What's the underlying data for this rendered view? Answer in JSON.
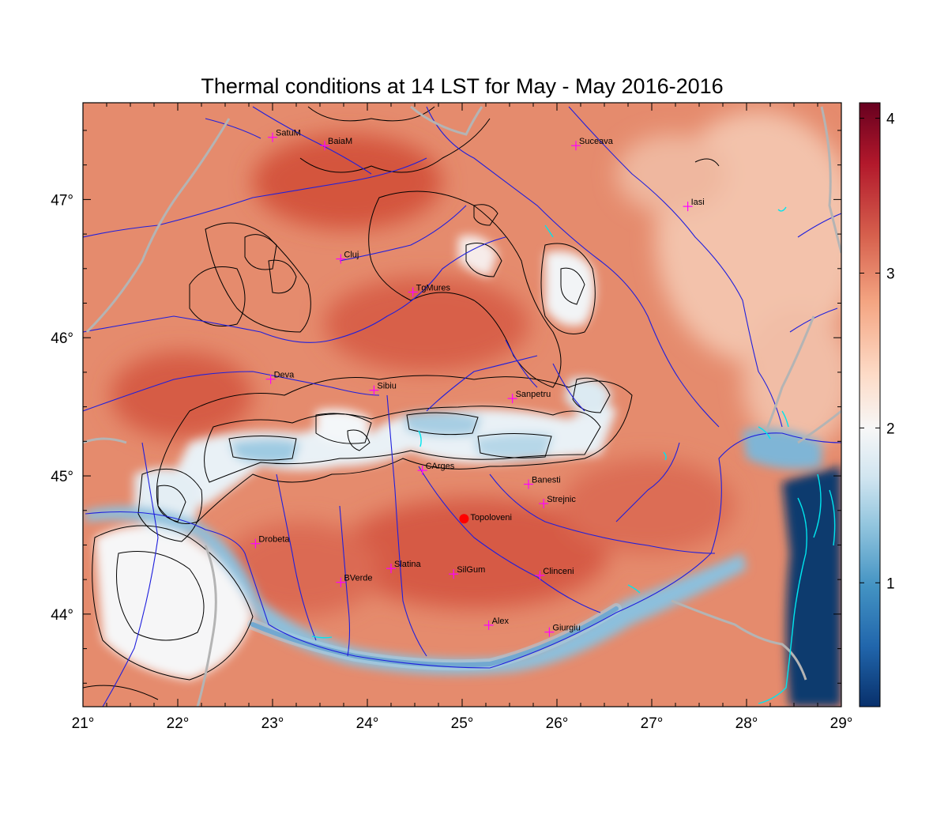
{
  "title": "Thermal conditions at 14 LST for May - May  2016-2016",
  "map": {
    "lon_range": [
      21,
      29
    ],
    "lat_range": [
      43.33,
      47.7
    ],
    "x_ticks": [
      {
        "value": 21,
        "label": "21°"
      },
      {
        "value": 22,
        "label": "22°"
      },
      {
        "value": 23,
        "label": "23°"
      },
      {
        "value": 24,
        "label": "24°"
      },
      {
        "value": 25,
        "label": "25°"
      },
      {
        "value": 26,
        "label": "26°"
      },
      {
        "value": 27,
        "label": "27°"
      },
      {
        "value": 28,
        "label": "28°"
      },
      {
        "value": 29,
        "label": "29°"
      }
    ],
    "y_ticks": [
      {
        "value": 44,
        "label": "44°"
      },
      {
        "value": 45,
        "label": "45°"
      },
      {
        "value": 46,
        "label": "46°"
      },
      {
        "value": 47,
        "label": "47°"
      }
    ],
    "cities": [
      {
        "name": "SatuM",
        "lon": 23.0,
        "lat": 47.45
      },
      {
        "name": "BaiaM",
        "lon": 23.55,
        "lat": 47.39
      },
      {
        "name": "Suceava",
        "lon": 26.2,
        "lat": 47.39
      },
      {
        "name": "Iasi",
        "lon": 27.38,
        "lat": 46.95
      },
      {
        "name": "Cluj",
        "lon": 23.72,
        "lat": 46.57
      },
      {
        "name": "TgMures",
        "lon": 24.48,
        "lat": 46.33
      },
      {
        "name": "Deva",
        "lon": 22.98,
        "lat": 45.7
      },
      {
        "name": "Sibiu",
        "lon": 24.07,
        "lat": 45.62
      },
      {
        "name": "Sanpetru",
        "lon": 25.53,
        "lat": 45.56
      },
      {
        "name": "CArges",
        "lon": 24.58,
        "lat": 45.04
      },
      {
        "name": "Banesti",
        "lon": 25.7,
        "lat": 44.94
      },
      {
        "name": "Strejnic",
        "lon": 25.86,
        "lat": 44.8
      },
      {
        "name": "Drobeta",
        "lon": 22.82,
        "lat": 44.51
      },
      {
        "name": "Slatina",
        "lon": 24.25,
        "lat": 44.33
      },
      {
        "name": "SilGum",
        "lon": 24.91,
        "lat": 44.29
      },
      {
        "name": "Clinceni",
        "lon": 25.82,
        "lat": 44.28
      },
      {
        "name": "BVerde",
        "lon": 23.72,
        "lat": 44.23
      },
      {
        "name": "Alex",
        "lon": 25.28,
        "lat": 43.92
      },
      {
        "name": "Giurgiu",
        "lon": 25.92,
        "lat": 43.87
      }
    ],
    "highlight": {
      "name": "Topoloveni",
      "lon": 25.02,
      "lat": 44.69
    }
  },
  "colorbar": {
    "min": 0.2,
    "max": 4.1,
    "ticks": [
      {
        "value": 1,
        "label": "1"
      },
      {
        "value": 2,
        "label": "2"
      },
      {
        "value": 3,
        "label": "3"
      },
      {
        "value": 4,
        "label": "4"
      }
    ],
    "colors": [
      "#08306b",
      "#2166ac",
      "#4393c3",
      "#92c5de",
      "#d1e5f0",
      "#f7f7f7",
      "#fddbc7",
      "#f4a582",
      "#d6604d",
      "#b2182b",
      "#67001f"
    ]
  },
  "style": {
    "city_marker_color": "#ff00ff",
    "highlight_color": "#ff0000",
    "river_color": "#1f1fdd",
    "border_color": "#b4b4b4",
    "lake_color": "#00e5ee",
    "contour_color": "#000000"
  }
}
